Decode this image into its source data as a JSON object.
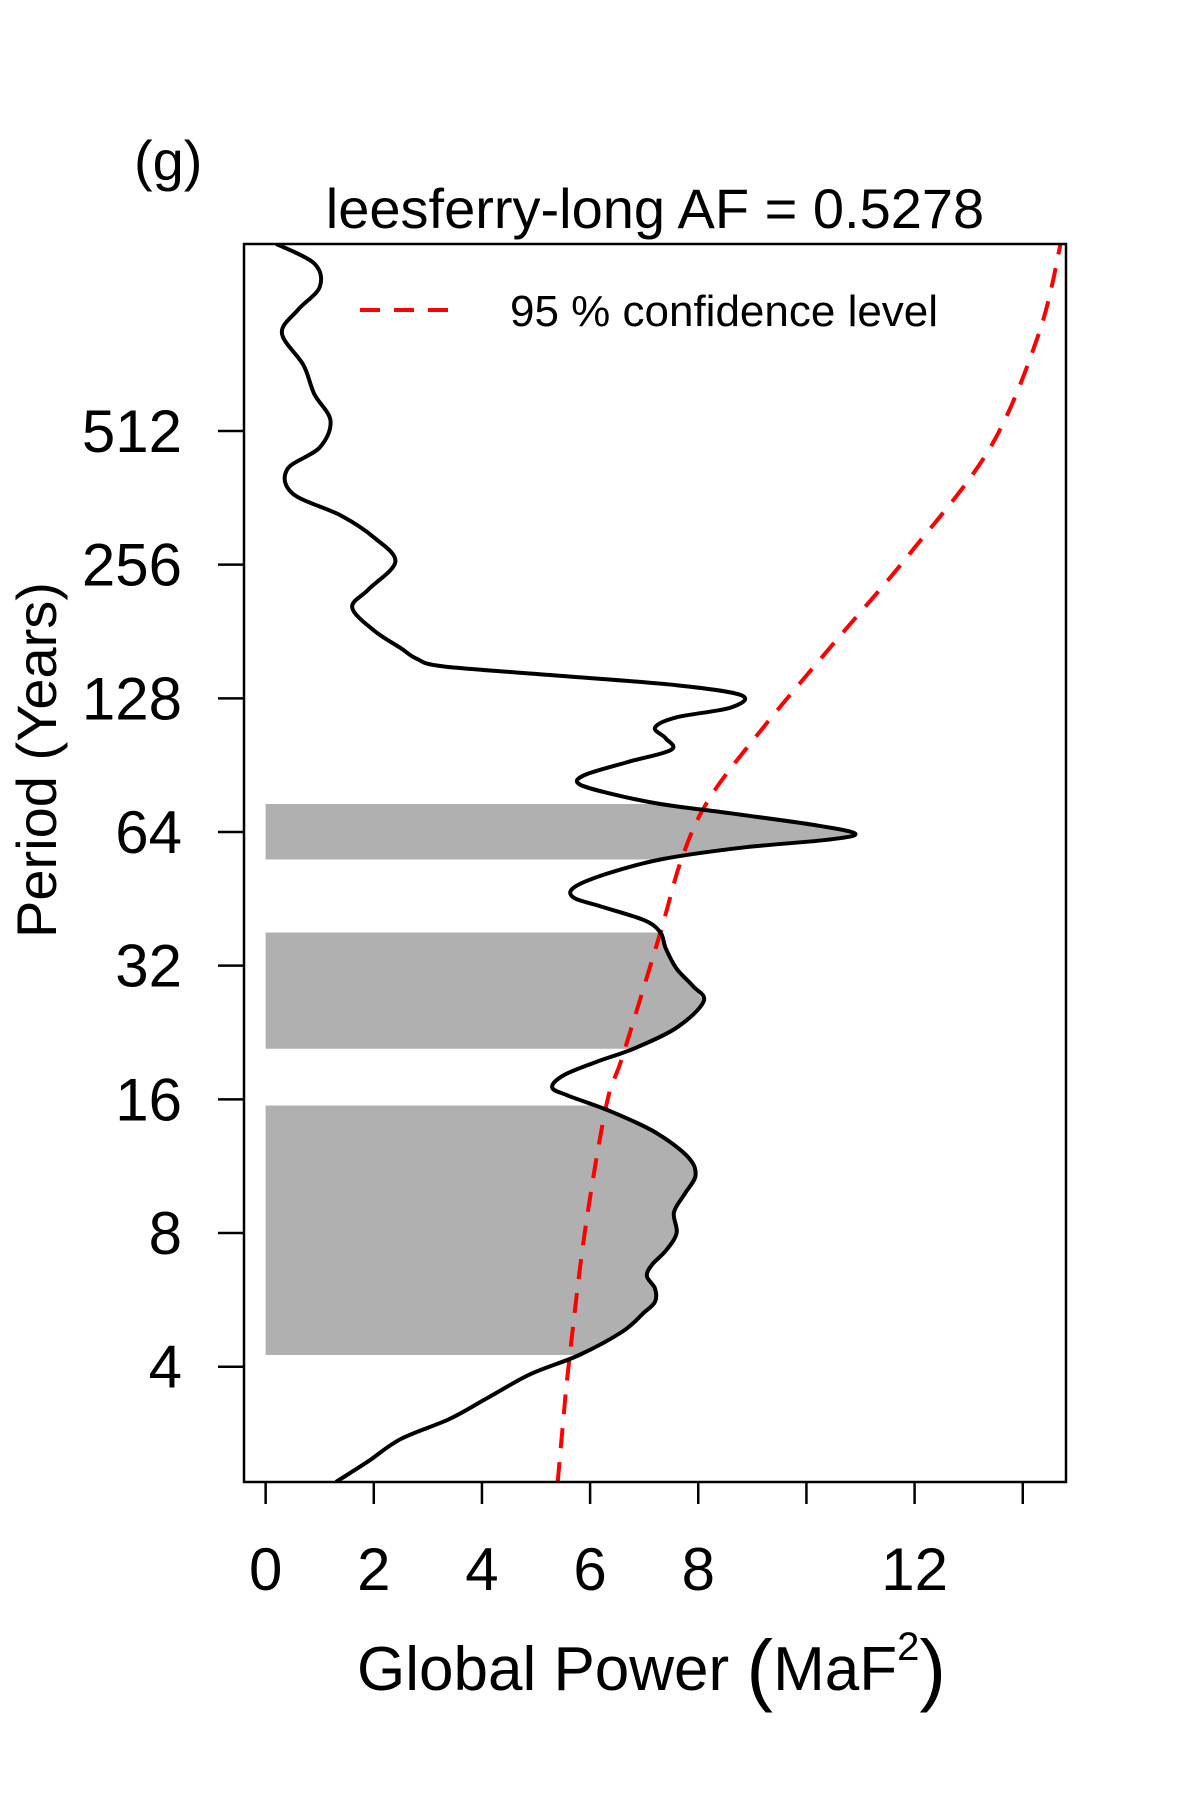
{
  "chart_data": {
    "type": "line",
    "panel_label": "(g)",
    "title": "leesferry-long AF = 0.5278",
    "xlabel_main": "Global Power ",
    "xlabel_unit": "MaF",
    "xlabel_exp": "2",
    "ylabel": "Period (Years)",
    "x_axis": {
      "min": -0.4,
      "max": 14.8,
      "ticks": [
        0,
        2,
        4,
        6,
        8,
        10,
        12,
        14
      ],
      "tick_labels": [
        "0",
        "2",
        "4",
        "6",
        "8",
        "",
        "12",
        ""
      ]
    },
    "y_axis": {
      "scale": "log2",
      "min": 2.2,
      "max": 1350,
      "ticks": [
        4,
        8,
        16,
        32,
        64,
        128,
        256,
        512
      ],
      "tick_labels": [
        "4",
        "8",
        "16",
        "32",
        "64",
        "128",
        "256",
        "512"
      ]
    },
    "legend": {
      "label": "95 % confidence level",
      "position": "top-right"
    },
    "colors": {
      "spectrum": "#000000",
      "confidence": "#ff0000",
      "shading": "#b0b0b0"
    },
    "series": [
      {
        "name": "spectrum",
        "points": [
          [
            1.3,
            2.2
          ],
          [
            1.9,
            2.45
          ],
          [
            2.5,
            2.75
          ],
          [
            3.4,
            3.05
          ],
          [
            4.1,
            3.4
          ],
          [
            4.9,
            3.85
          ],
          [
            5.8,
            4.25
          ],
          [
            6.6,
            4.8
          ],
          [
            7.0,
            5.3
          ],
          [
            7.2,
            5.6
          ],
          [
            7.2,
            6.0
          ],
          [
            7.05,
            6.4
          ],
          [
            7.15,
            6.8
          ],
          [
            7.4,
            7.3
          ],
          [
            7.6,
            8.0
          ],
          [
            7.55,
            8.9
          ],
          [
            7.75,
            9.8
          ],
          [
            7.95,
            10.8
          ],
          [
            7.8,
            11.9
          ],
          [
            7.2,
            13.5
          ],
          [
            6.4,
            15.0
          ],
          [
            5.6,
            16.3
          ],
          [
            5.3,
            17.0
          ],
          [
            5.5,
            18.1
          ],
          [
            6.1,
            19.4
          ],
          [
            6.8,
            20.8
          ],
          [
            7.6,
            23.2
          ],
          [
            8.1,
            26.6
          ],
          [
            7.9,
            28.8
          ],
          [
            7.6,
            31.5
          ],
          [
            7.4,
            35.0
          ],
          [
            7.3,
            38.0
          ],
          [
            7.0,
            40.5
          ],
          [
            6.2,
            43.5
          ],
          [
            5.7,
            45.5
          ],
          [
            5.7,
            48.0
          ],
          [
            6.3,
            51.5
          ],
          [
            7.3,
            55.5
          ],
          [
            8.8,
            59.0
          ],
          [
            10.4,
            61.5
          ],
          [
            10.9,
            63.5
          ],
          [
            10.1,
            66.5
          ],
          [
            8.6,
            70.5
          ],
          [
            7.3,
            74.0
          ],
          [
            6.4,
            78.0
          ],
          [
            5.8,
            82.0
          ],
          [
            5.9,
            86.0
          ],
          [
            6.7,
            92.0
          ],
          [
            7.5,
            98.0
          ],
          [
            7.4,
            104.0
          ],
          [
            7.2,
            110.0
          ],
          [
            7.6,
            116.0
          ],
          [
            8.6,
            122.0
          ],
          [
            8.8,
            130.0
          ],
          [
            7.6,
            137.0
          ],
          [
            5.4,
            144.0
          ],
          [
            3.3,
            151.0
          ],
          [
            2.8,
            157.0
          ],
          [
            2.5,
            166.0
          ],
          [
            2.0,
            182.0
          ],
          [
            1.6,
            205.0
          ],
          [
            1.9,
            225.0
          ],
          [
            2.4,
            260.0
          ],
          [
            2.0,
            295.0
          ],
          [
            1.4,
            330.0
          ],
          [
            0.5,
            370.0
          ],
          [
            0.4,
            420.0
          ],
          [
            1.0,
            470.0
          ],
          [
            1.2,
            540.0
          ],
          [
            0.9,
            620.0
          ],
          [
            0.7,
            720.0
          ],
          [
            0.3,
            850.0
          ],
          [
            0.6,
            960.0
          ],
          [
            1.0,
            1080.0
          ],
          [
            0.9,
            1220.0
          ],
          [
            0.2,
            1350.0
          ]
        ]
      },
      {
        "name": "95 % confidence level",
        "points": [
          [
            5.4,
            2.2
          ],
          [
            5.5,
            3.0
          ],
          [
            5.6,
            4.0
          ],
          [
            5.9,
            8.0
          ],
          [
            6.3,
            15.5
          ],
          [
            6.6,
            20.0
          ],
          [
            7.3,
            38.0
          ],
          [
            7.7,
            56.0
          ],
          [
            8.2,
            76.0
          ],
          [
            9.2,
            110.0
          ],
          [
            10.5,
            170.0
          ],
          [
            11.9,
            270.0
          ],
          [
            13.4,
            470.0
          ],
          [
            14.3,
            850.0
          ],
          [
            14.7,
            1350.0
          ]
        ]
      }
    ],
    "significant_bands": [
      {
        "ymin": 55.5,
        "ymax": 74.0
      },
      {
        "ymin": 20.8,
        "ymax": 38.0
      },
      {
        "ymin": 4.25,
        "ymax": 15.5
      }
    ]
  }
}
